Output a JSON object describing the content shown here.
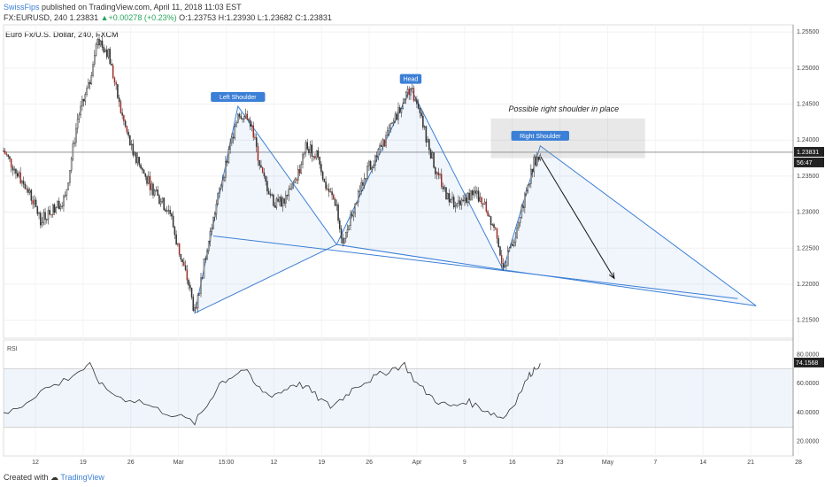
{
  "header": {
    "author": "SwissFips",
    "published": "published on TradingView.com, April 11, 2018 11:03 EST"
  },
  "quote": {
    "symbol": "FX:EURUSD, 240",
    "last": "1.23831",
    "change": "+0.00278 (+0.23%)",
    "open": "O:1.23753",
    "high": "H:1.23930",
    "low": "L:1.23682",
    "close": "C:1.23831"
  },
  "pane_title": "Euro Fx/U.S. Dollar, 240, FXCM",
  "footer": {
    "created": "Created with",
    "brand": "TradingView"
  },
  "colors": {
    "up": "#26a65b",
    "down": "#e0352b",
    "pattern": "#3b7fd6",
    "candle": "#333333"
  },
  "chart_data": [
    {
      "type": "candlestick",
      "y_ticks": [
        "1.25500",
        "1.25000",
        "1.24500",
        "1.24000",
        "1.23500",
        "1.23000",
        "1.22500",
        "1.22000",
        "1.21500"
      ],
      "ylim": [
        1.2125,
        1.256
      ],
      "x_ticks": [
        "12",
        "19",
        "26",
        "Mar",
        "15:00",
        "12",
        "19",
        "26",
        "Apr",
        "9",
        "16",
        "23",
        "May",
        "7",
        "14",
        "21",
        "28"
      ],
      "last_price": "1.23831",
      "countdown": "56:47",
      "close_path": [
        [
          0,
          1.2385
        ],
        [
          4,
          1.233
        ],
        [
          6,
          1.229
        ],
        [
          10,
          1.232
        ],
        [
          12,
          1.243
        ],
        [
          14,
          1.248
        ],
        [
          15,
          1.254
        ],
        [
          17,
          1.252
        ],
        [
          19,
          1.244
        ],
        [
          21,
          1.238
        ],
        [
          23,
          1.235
        ],
        [
          25,
          1.232
        ],
        [
          27,
          1.23
        ],
        [
          28,
          1.226
        ],
        [
          30,
          1.22
        ],
        [
          31,
          1.216
        ],
        [
          33,
          1.225
        ],
        [
          35,
          1.233
        ],
        [
          37,
          1.24
        ],
        [
          38,
          1.244
        ],
        [
          40,
          1.2425
        ],
        [
          42,
          1.235
        ],
        [
          44,
          1.231
        ],
        [
          46,
          1.232
        ],
        [
          48,
          1.236
        ],
        [
          49,
          1.239
        ],
        [
          51,
          1.238
        ],
        [
          52,
          1.234
        ],
        [
          54,
          1.231
        ],
        [
          55,
          1.2255
        ],
        [
          57,
          1.231
        ],
        [
          59,
          1.236
        ],
        [
          61,
          1.2385
        ],
        [
          63,
          1.242
        ],
        [
          65,
          1.246
        ],
        [
          66,
          1.2472
        ],
        [
          68,
          1.242
        ],
        [
          70,
          1.236
        ],
        [
          72,
          1.232
        ],
        [
          74,
          1.231
        ],
        [
          76,
          1.233
        ],
        [
          78,
          1.231
        ],
        [
          80,
          1.227
        ],
        [
          81,
          1.222
        ],
        [
          83,
          1.227
        ],
        [
          85,
          1.234
        ],
        [
          86,
          1.237
        ],
        [
          87,
          1.2383
        ]
      ],
      "annotations": {
        "left_shoulder": "Left Shoulder",
        "head": "Head",
        "right_shoulder": "Right Shoulder",
        "note": "Possible right shoulder in place"
      },
      "pattern_points": {
        "left_shoulder": [
          [
            31,
            1.216
          ],
          [
            38,
            1.2447
          ],
          [
            54,
            1.2255
          ]
        ],
        "head": [
          [
            54,
            1.2255
          ],
          [
            66,
            1.2472
          ],
          [
            81,
            1.222
          ]
        ],
        "right_shoulder": [
          [
            81,
            1.222
          ],
          [
            87,
            1.2392
          ],
          [
            122,
            1.217
          ]
        ],
        "neckline": [
          [
            34,
            1.2267
          ],
          [
            119,
            1.218
          ]
        ],
        "projection_arrow": [
          [
            87,
            1.2378
          ],
          [
            99,
            1.2208
          ]
        ],
        "target_zone": [
          [
            79,
            1.243
          ],
          [
            104,
            1.2375
          ]
        ]
      }
    },
    {
      "type": "line",
      "title": "RSI",
      "y_ticks": [
        "80.0000",
        "60.0000",
        "40.0000",
        "20.0000"
      ],
      "ylim": [
        10,
        90
      ],
      "band": [
        30,
        70
      ],
      "last_value": "74.1568",
      "values": [
        [
          0,
          38
        ],
        [
          3,
          45
        ],
        [
          6,
          55
        ],
        [
          9,
          60
        ],
        [
          12,
          68
        ],
        [
          14,
          72
        ],
        [
          16,
          58
        ],
        [
          19,
          50
        ],
        [
          22,
          48
        ],
        [
          25,
          42
        ],
        [
          28,
          38
        ],
        [
          31,
          33
        ],
        [
          33,
          45
        ],
        [
          35,
          60
        ],
        [
          37,
          65
        ],
        [
          39,
          70
        ],
        [
          41,
          58
        ],
        [
          43,
          52
        ],
        [
          45,
          54
        ],
        [
          47,
          60
        ],
        [
          49,
          58
        ],
        [
          51,
          50
        ],
        [
          53,
          44
        ],
        [
          55,
          50
        ],
        [
          57,
          58
        ],
        [
          59,
          62
        ],
        [
          61,
          66
        ],
        [
          63,
          70
        ],
        [
          65,
          73
        ],
        [
          67,
          60
        ],
        [
          69,
          52
        ],
        [
          71,
          46
        ],
        [
          73,
          44
        ],
        [
          75,
          48
        ],
        [
          77,
          44
        ],
        [
          79,
          40
        ],
        [
          81,
          36
        ],
        [
          83,
          48
        ],
        [
          85,
          64
        ],
        [
          86,
          70
        ],
        [
          87,
          74
        ]
      ]
    }
  ]
}
